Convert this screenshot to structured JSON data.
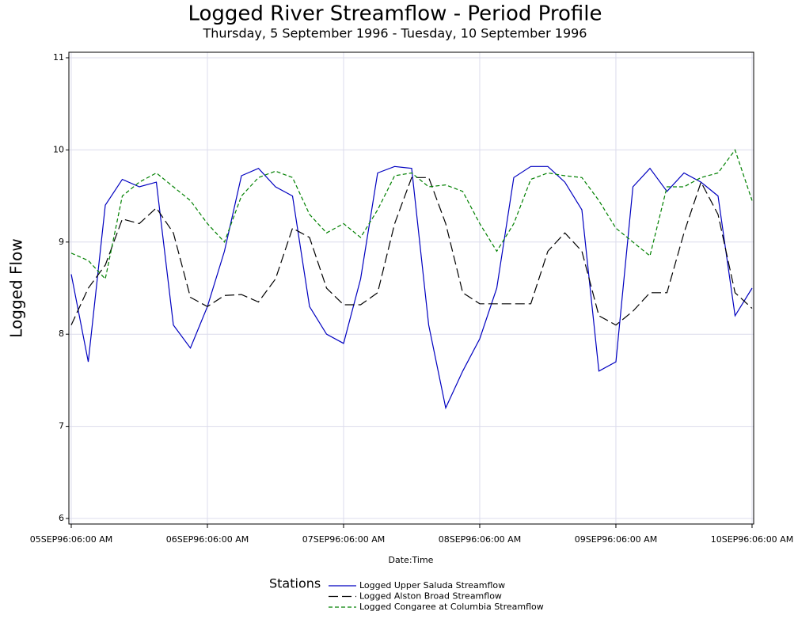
{
  "chart_data": {
    "type": "line",
    "title": "Logged River Streamflow - Period Profile",
    "subtitle": "Thursday, 5 September 1996 - Tuesday, 10 September 1996",
    "x_label": "Date:Time",
    "y_label": "Logged Flow",
    "legend_title": "Stations",
    "legend": "bottom",
    "grid": true,
    "x": [
      "1996-09-05T06:00",
      "1996-09-05T09:00",
      "1996-09-05T12:00",
      "1996-09-05T15:00",
      "1996-09-05T18:00",
      "1996-09-05T21:00",
      "1996-09-06T00:00",
      "1996-09-06T03:00",
      "1996-09-06T06:00",
      "1996-09-06T09:00",
      "1996-09-06T12:00",
      "1996-09-06T15:00",
      "1996-09-06T18:00",
      "1996-09-06T21:00",
      "1996-09-07T00:00",
      "1996-09-07T03:00",
      "1996-09-07T06:00",
      "1996-09-07T09:00",
      "1996-09-07T12:00",
      "1996-09-07T15:00",
      "1996-09-07T18:00",
      "1996-09-07T21:00",
      "1996-09-08T00:00",
      "1996-09-08T03:00",
      "1996-09-08T06:00",
      "1996-09-08T09:00",
      "1996-09-08T12:00",
      "1996-09-08T15:00",
      "1996-09-08T18:00",
      "1996-09-08T21:00",
      "1996-09-09T00:00",
      "1996-09-09T03:00",
      "1996-09-09T06:00",
      "1996-09-09T09:00",
      "1996-09-09T12:00",
      "1996-09-09T15:00",
      "1996-09-09T18:00",
      "1996-09-09T21:00",
      "1996-09-10T00:00",
      "1996-09-10T03:00",
      "1996-09-10T06:00"
    ],
    "xlim": [
      "1996-09-05T05:35",
      "1996-09-10T06:17"
    ],
    "xticks": [
      {
        "value": "1996-09-05T06:00",
        "label": "05SEP96:06:00 AM"
      },
      {
        "value": "1996-09-06T06:00",
        "label": "06SEP96:06:00 AM"
      },
      {
        "value": "1996-09-07T06:00",
        "label": "07SEP96:06:00 AM"
      },
      {
        "value": "1996-09-08T06:00",
        "label": "08SEP96:06:00 AM"
      },
      {
        "value": "1996-09-09T06:00",
        "label": "09SEP96:06:00 AM"
      },
      {
        "value": "1996-09-10T06:00",
        "label": "10SEP96:06:00 AM"
      }
    ],
    "ylim": [
      5.94,
      11.06
    ],
    "yticks": [
      6,
      7,
      8,
      9,
      10,
      11
    ],
    "series": [
      {
        "name": "Logged Upper Saluda Streamflow",
        "color": "#0000c0",
        "line_style": "solid",
        "values": [
          8.65,
          7.7,
          9.4,
          9.68,
          9.6,
          9.65,
          8.1,
          7.85,
          8.3,
          8.9,
          9.72,
          9.8,
          9.6,
          9.5,
          8.3,
          8.0,
          7.9,
          8.6,
          9.75,
          9.82,
          9.8,
          8.1,
          7.2,
          7.6,
          7.95,
          8.5,
          9.7,
          9.82,
          9.82,
          9.65,
          9.35,
          7.6,
          7.7,
          9.6,
          9.8,
          9.55,
          9.75,
          9.65,
          9.5,
          8.2,
          8.5
        ]
      },
      {
        "name": "Logged Alston Broad Streamflow",
        "color": "#000000",
        "line_style": "long-dash",
        "values": [
          8.1,
          8.5,
          8.75,
          9.25,
          9.2,
          9.37,
          9.1,
          8.4,
          8.3,
          8.42,
          8.43,
          8.35,
          8.6,
          9.15,
          9.05,
          8.5,
          8.32,
          8.32,
          8.45,
          9.2,
          9.7,
          9.7,
          9.2,
          8.45,
          8.33,
          8.33,
          8.33,
          8.33,
          8.9,
          9.1,
          8.9,
          8.2,
          8.1,
          8.25,
          8.45,
          8.45,
          9.1,
          9.65,
          9.3,
          8.45,
          8.28
        ]
      },
      {
        "name": "Logged Congaree at Columbia Streamflow",
        "color": "#008000",
        "line_style": "dash",
        "values": [
          8.88,
          8.8,
          8.6,
          9.5,
          9.65,
          9.75,
          9.6,
          9.45,
          9.2,
          9.0,
          9.5,
          9.7,
          9.77,
          9.7,
          9.3,
          9.1,
          9.2,
          9.05,
          9.35,
          9.72,
          9.75,
          9.6,
          9.62,
          9.55,
          9.2,
          8.9,
          9.2,
          9.68,
          9.75,
          9.72,
          9.7,
          9.45,
          9.15,
          9.0,
          8.85,
          9.6,
          9.6,
          9.7,
          9.75,
          10.0,
          9.45
        ]
      }
    ]
  }
}
